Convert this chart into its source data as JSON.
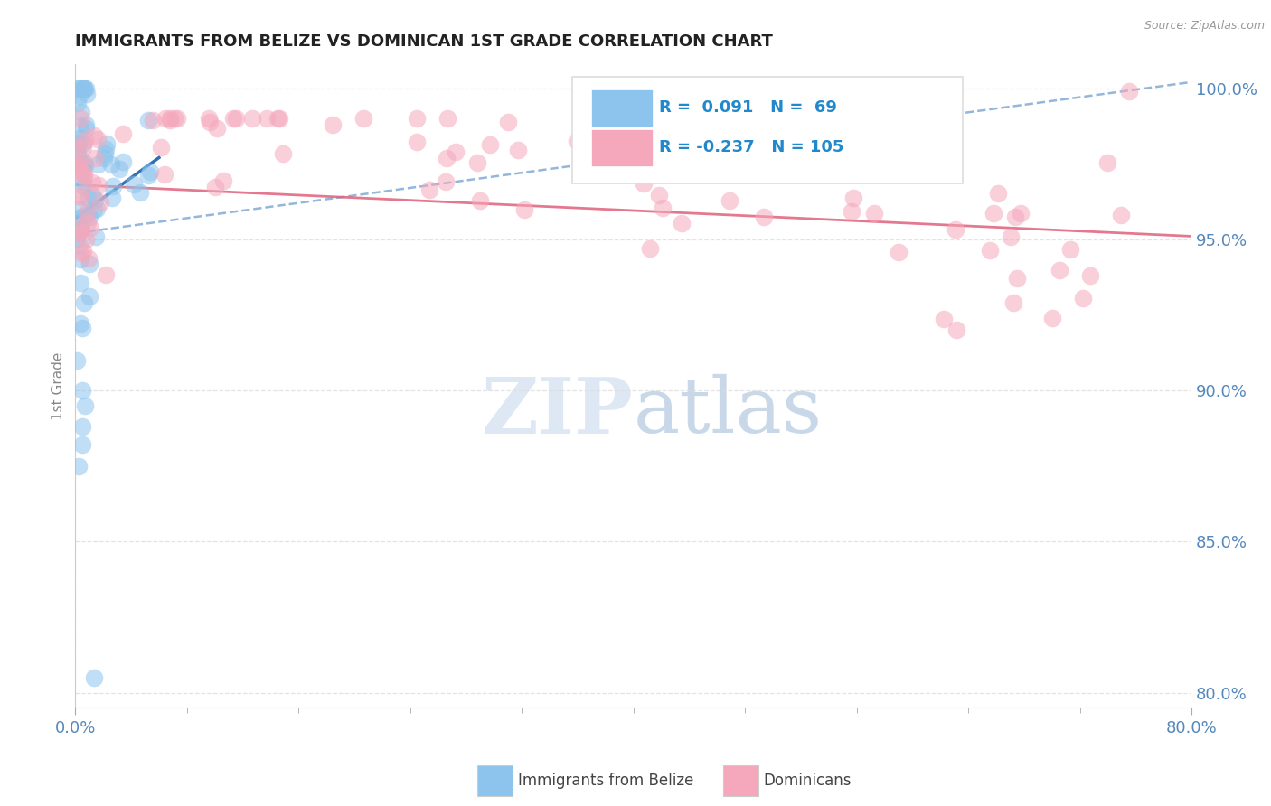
{
  "title": "IMMIGRANTS FROM BELIZE VS DOMINICAN 1ST GRADE CORRELATION CHART",
  "source": "Source: ZipAtlas.com",
  "ylabel": "1st Grade",
  "xmin": 0.0,
  "xmax": 0.8,
  "ymin": 0.795,
  "ymax": 1.008,
  "y_ticks": [
    0.8,
    0.85,
    0.9,
    0.95,
    1.0
  ],
  "y_tick_labels": [
    "80.0%",
    "85.0%",
    "90.0%",
    "95.0%",
    "100.0%"
  ],
  "legend_belize_r": "0.091",
  "legend_belize_n": "69",
  "legend_dominican_r": "-0.237",
  "legend_dominican_n": "105",
  "belize_color": "#8DC4ED",
  "dominican_color": "#F5A8BC",
  "belize_line_color": "#1A5FA8",
  "belize_dash_color": "#6699CC",
  "dominican_line_color": "#E0607A",
  "background_color": "#FFFFFF",
  "grid_color": "#CCCCCC",
  "title_fontsize": 13,
  "axis_label_color": "#5588BB",
  "legend_r_color": "#2288CC",
  "watermark_color": "#DDE8F4"
}
